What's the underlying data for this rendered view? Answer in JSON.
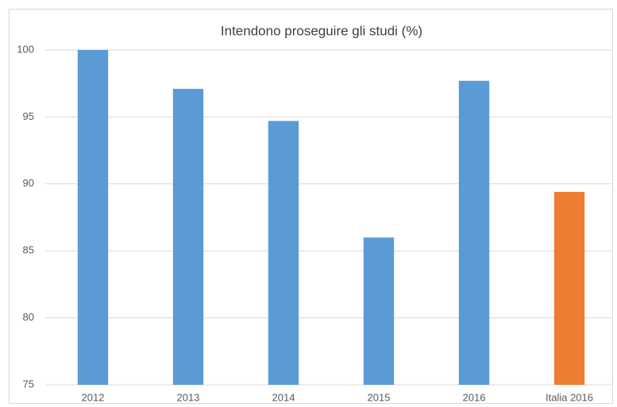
{
  "chart_data": {
    "type": "bar",
    "title": "Intendono proseguire gli studi (%)",
    "categories": [
      "2012",
      "2013",
      "2014",
      "2015",
      "2016",
      "Italia 2016"
    ],
    "values": [
      100,
      97.1,
      94.7,
      86.0,
      97.7,
      89.4
    ],
    "colors": [
      "#5b9bd5",
      "#5b9bd5",
      "#5b9bd5",
      "#5b9bd5",
      "#5b9bd5",
      "#ed7d31"
    ],
    "ylim": [
      75,
      100
    ],
    "yticks": [
      75,
      80,
      85,
      90,
      95,
      100
    ],
    "grid": true
  }
}
